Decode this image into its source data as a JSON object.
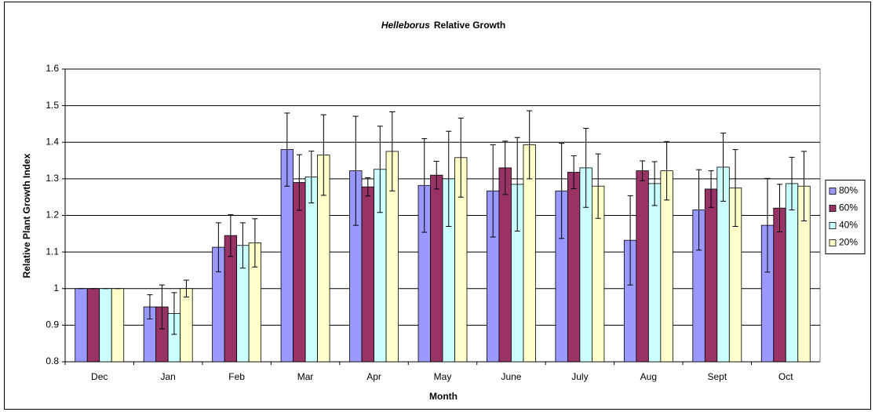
{
  "chart_data": {
    "type": "bar",
    "title": [
      "Helleborus",
      "Relative Growth"
    ],
    "x_label": "Month",
    "y_label": "Relative Plant Growth Index",
    "categories": [
      "Dec",
      "Jan",
      "Feb",
      "Mar",
      "Apr",
      "May",
      "June",
      "July",
      "Aug",
      "Sept",
      "Oct"
    ],
    "series": [
      {
        "name": "80%",
        "color": "#9999ff",
        "values": [
          1,
          0.95,
          1.113,
          1.38,
          1.322,
          1.282,
          1.267,
          1.267,
          1.132,
          1.215,
          1.173
        ],
        "errors": [
          0,
          0.033,
          0.067,
          0.1,
          0.149,
          0.128,
          0.126,
          0.13,
          0.122,
          0.11,
          0.128
        ]
      },
      {
        "name": "60%",
        "color": "#993366",
        "values": [
          1,
          0.95,
          1.145,
          1.29,
          1.278,
          1.31,
          1.33,
          1.318,
          1.322,
          1.272,
          1.22
        ],
        "errors": [
          0,
          0.06,
          0.057,
          0.076,
          0.025,
          0.038,
          0.073,
          0.045,
          0.027,
          0.05,
          0.065
        ]
      },
      {
        "name": "40%",
        "color": "#ccffff",
        "values": [
          1,
          0.932,
          1.118,
          1.305,
          1.326,
          1.3,
          1.285,
          1.33,
          1.287,
          1.332,
          1.287
        ],
        "errors": [
          0,
          0.057,
          0.062,
          0.071,
          0.118,
          0.13,
          0.128,
          0.108,
          0.06,
          0.093,
          0.072
        ]
      },
      {
        "name": "20%",
        "color": "#ffffcc",
        "values": [
          1,
          1,
          1.125,
          1.365,
          1.375,
          1.358,
          1.393,
          1.28,
          1.322,
          1.275,
          1.28
        ],
        "errors": [
          0,
          0.023,
          0.066,
          0.11,
          0.108,
          0.108,
          0.093,
          0.088,
          0.08,
          0.105,
          0.095
        ]
      }
    ],
    "ylim": [
      0.8,
      1.6
    ],
    "yticks": [
      0.8,
      0.9,
      1,
      1.1,
      1.2,
      1.3,
      1.4,
      1.5,
      1.6
    ],
    "grid": true,
    "legend": "right"
  }
}
